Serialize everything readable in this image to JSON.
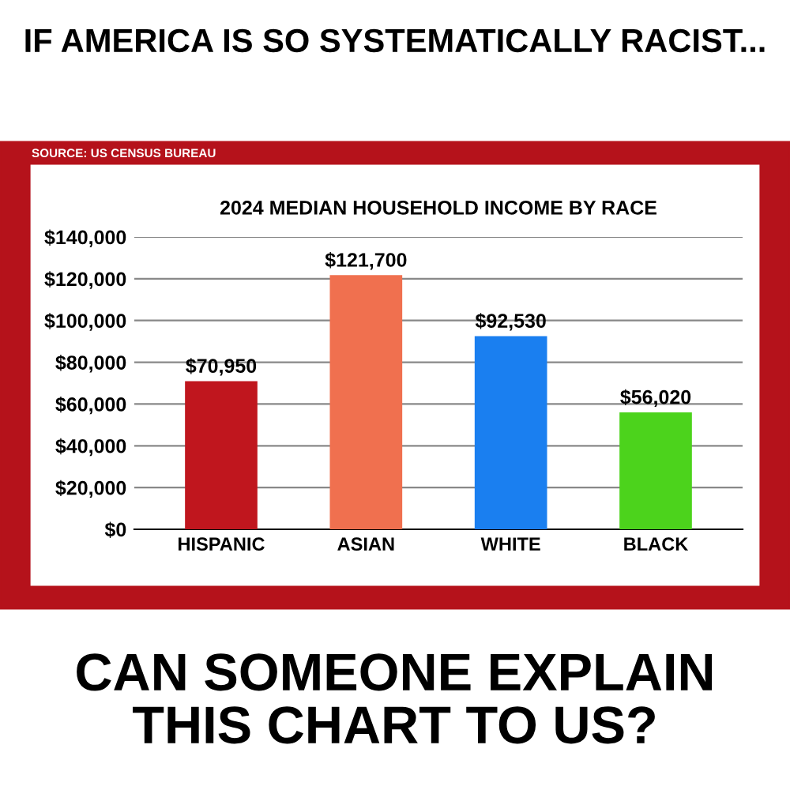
{
  "chart_data": {
    "type": "bar",
    "title": "IF AMERICA IS SO SYSTEMATICALLY RACIST...",
    "subtitle": "2024 MEDIAN HOUSEHOLD INCOME BY RACE",
    "annotations": [
      "SOURCE: US CENSUS BUREAU",
      "CAN SOMEONE EXPLAIN\nTHIS CHART TO US?"
    ],
    "categories": [
      "HISPANIC",
      "ASIAN",
      "WHITE",
      "BLACK"
    ],
    "values": [
      70950,
      121700,
      92530,
      56020
    ],
    "value_labels": [
      "$70,950",
      "$121,700",
      "$92,530",
      "$56,020"
    ],
    "colors": [
      "#c0161e",
      "#f0704f",
      "#1a7ff0",
      "#4cd31c"
    ],
    "ylim": [
      0,
      140000
    ],
    "yticks": [
      {
        "value": 0,
        "label": "$0"
      },
      {
        "value": 20000,
        "label": "$20,000"
      },
      {
        "value": 40000,
        "label": "$40,000"
      },
      {
        "value": 60000,
        "label": "$60,000"
      },
      {
        "value": 80000,
        "label": "$80,000"
      },
      {
        "value": 100000,
        "label": "$100,000"
      },
      {
        "value": 120000,
        "label": "$120,000"
      },
      {
        "value": 140000,
        "label": "$140,000"
      }
    ],
    "grid": "y",
    "legend": false
  }
}
